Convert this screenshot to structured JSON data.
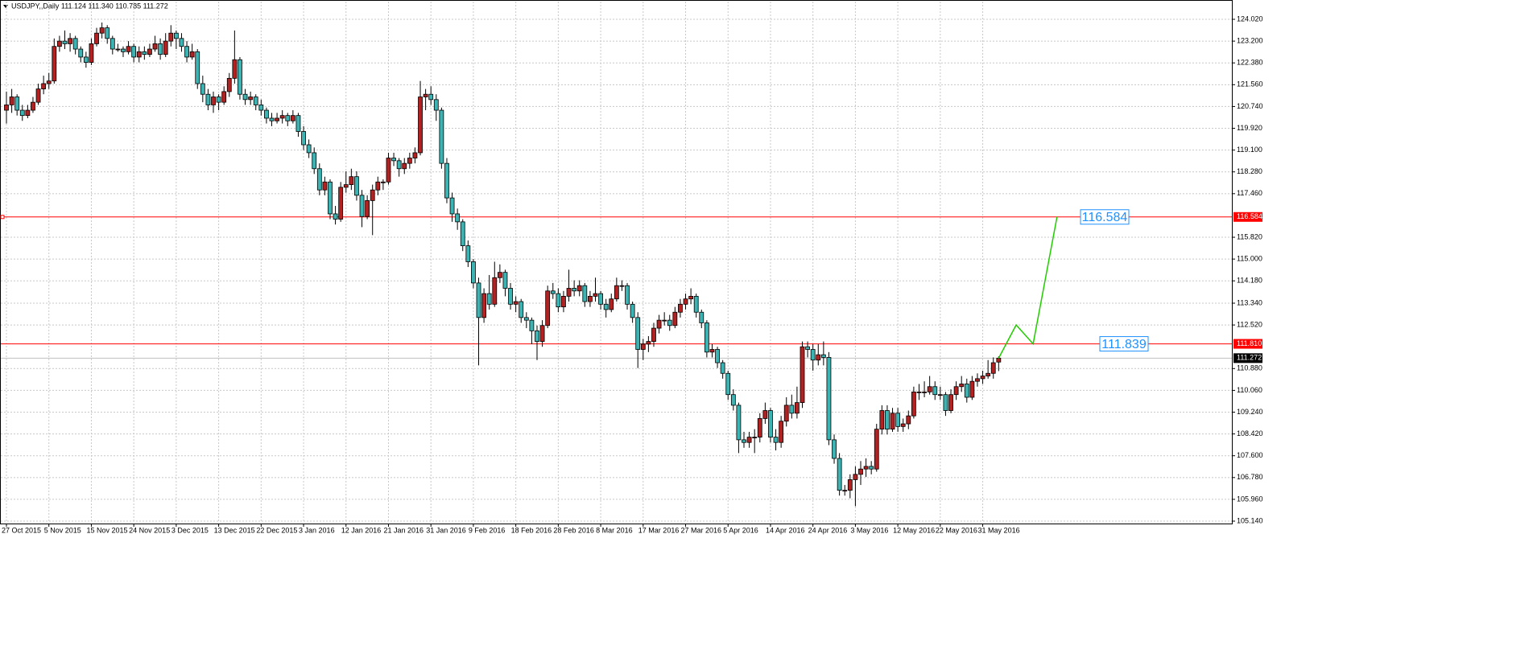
{
  "chart_data": {
    "type": "candlestick",
    "title": "USDJPY,,Daily  111.124 111.340 110.785 111.272",
    "up_color": "#b22222",
    "down_color": "#3cb4b4",
    "wick_color": "#000000",
    "grid": true,
    "ylim": [
      105.08,
      124.686
    ],
    "yticks": [
      {
        "value": 124.02,
        "label": "124.020"
      },
      {
        "value": 123.2,
        "label": "123.200"
      },
      {
        "value": 122.38,
        "label": "122.380"
      },
      {
        "value": 121.56,
        "label": "121.560"
      },
      {
        "value": 120.74,
        "label": "120.740"
      },
      {
        "value": 119.92,
        "label": "119.920"
      },
      {
        "value": 119.1,
        "label": "119.100"
      },
      {
        "value": 118.28,
        "label": "118.280"
      },
      {
        "value": 117.46,
        "label": "117.460"
      },
      {
        "value": 115.82,
        "label": "115.820"
      },
      {
        "value": 115,
        "label": "115.000"
      },
      {
        "value": 114.18,
        "label": "114.180"
      },
      {
        "value": 113.34,
        "label": "113.340"
      },
      {
        "value": 112.52,
        "label": "112.520"
      },
      {
        "value": 110.88,
        "label": "110.880"
      },
      {
        "value": 110.06,
        "label": "110.060"
      },
      {
        "value": 109.24,
        "label": "109.240"
      },
      {
        "value": 108.42,
        "label": "108.420"
      },
      {
        "value": 107.6,
        "label": "107.600"
      },
      {
        "value": 106.78,
        "label": "106.780"
      },
      {
        "value": 105.96,
        "label": "105.960"
      },
      {
        "value": 105.14,
        "label": "105.140"
      }
    ],
    "categories": [
      "27 Oct 2015",
      null,
      null,
      null,
      null,
      null,
      null,
      null,
      "5 Nov 2015",
      null,
      null,
      null,
      null,
      null,
      null,
      null,
      "15 Nov 2015",
      null,
      null,
      null,
      null,
      null,
      null,
      null,
      "24 Nov 2015",
      null,
      null,
      null,
      null,
      null,
      null,
      null,
      "3 Dec 2015",
      null,
      null,
      null,
      null,
      null,
      null,
      null,
      "13 Dec 2015",
      null,
      null,
      null,
      null,
      null,
      null,
      null,
      "22 Dec 2015",
      null,
      null,
      null,
      null,
      null,
      null,
      null,
      "3 Jan 2016",
      null,
      null,
      null,
      null,
      null,
      null,
      null,
      "12 Jan 2016",
      null,
      null,
      null,
      null,
      null,
      null,
      null,
      "21 Jan 2016",
      null,
      null,
      null,
      null,
      null,
      null,
      null,
      "31 Jan 2016",
      null,
      null,
      null,
      null,
      null,
      null,
      null,
      "9 Feb 2016",
      null,
      null,
      null,
      null,
      null,
      null,
      null,
      "18 Feb 2016",
      null,
      null,
      null,
      null,
      null,
      null,
      null,
      "28 Feb 2016",
      null,
      null,
      null,
      null,
      null,
      null,
      null,
      "8 Mar 2016",
      null,
      null,
      null,
      null,
      null,
      null,
      null,
      "17 Mar 2016",
      null,
      null,
      null,
      null,
      null,
      null,
      null,
      "27 Mar 2016",
      null,
      null,
      null,
      null,
      null,
      null,
      null,
      "5 Apr 2016",
      null,
      null,
      null,
      null,
      null,
      null,
      null,
      "14 Apr 2016",
      null,
      null,
      null,
      null,
      null,
      null,
      null,
      "24 Apr 2016",
      null,
      null,
      null,
      null,
      null,
      null,
      null,
      "3 May 2016",
      null,
      null,
      null,
      null,
      null,
      null,
      null,
      "12 May 2016",
      null,
      null,
      null,
      null,
      null,
      null,
      null,
      "22 May 2016",
      null,
      null,
      null,
      null,
      null,
      null,
      null,
      "31 May 2016",
      null,
      null,
      null
    ],
    "ohlc": [
      [
        120.6,
        121.3,
        120.1,
        120.8
      ],
      [
        120.8,
        121.4,
        120.5,
        121.1
      ],
      [
        121.1,
        121.2,
        120.4,
        120.6
      ],
      [
        120.6,
        120.8,
        120.2,
        120.4
      ],
      [
        120.4,
        120.8,
        120.3,
        120.6
      ],
      [
        120.6,
        121.1,
        120.5,
        120.9
      ],
      [
        120.9,
        121.6,
        120.8,
        121.4
      ],
      [
        121.4,
        121.9,
        121.2,
        121.6
      ],
      [
        121.6,
        122.0,
        121.4,
        121.7
      ],
      [
        121.7,
        123.3,
        121.6,
        123.0
      ],
      [
        123.0,
        123.4,
        122.8,
        123.2
      ],
      [
        123.2,
        123.6,
        122.9,
        123.1
      ],
      [
        123.1,
        123.5,
        122.8,
        123.3
      ],
      [
        123.3,
        123.4,
        122.7,
        122.9
      ],
      [
        122.9,
        123.0,
        122.4,
        122.6
      ],
      [
        122.6,
        122.8,
        122.2,
        122.4
      ],
      [
        122.4,
        123.3,
        122.3,
        123.1
      ],
      [
        123.1,
        123.7,
        123.0,
        123.5
      ],
      [
        123.5,
        123.9,
        123.3,
        123.7
      ],
      [
        123.7,
        123.8,
        123.1,
        123.3
      ],
      [
        123.3,
        123.4,
        122.7,
        122.9
      ],
      [
        122.9,
        123.1,
        122.8,
        122.9
      ],
      [
        122.9,
        123.0,
        122.6,
        122.8
      ],
      [
        122.8,
        123.2,
        122.7,
        123.0
      ],
      [
        123.0,
        123.1,
        122.4,
        122.6
      ],
      [
        122.6,
        123.0,
        122.4,
        122.8
      ],
      [
        122.8,
        123.0,
        122.5,
        122.7
      ],
      [
        122.7,
        123.1,
        122.6,
        122.9
      ],
      [
        122.9,
        123.4,
        122.8,
        123.1
      ],
      [
        123.1,
        123.3,
        122.5,
        122.7
      ],
      [
        122.7,
        123.5,
        122.6,
        123.2
      ],
      [
        123.2,
        123.8,
        123.0,
        123.5
      ],
      [
        123.5,
        123.6,
        122.9,
        123.3
      ],
      [
        123.3,
        123.5,
        122.8,
        123.0
      ],
      [
        123.0,
        123.2,
        122.4,
        122.6
      ],
      [
        122.6,
        123.1,
        122.5,
        122.8
      ],
      [
        122.8,
        122.9,
        121.4,
        121.6
      ],
      [
        121.6,
        121.9,
        120.9,
        121.2
      ],
      [
        121.2,
        121.4,
        120.6,
        120.8
      ],
      [
        120.8,
        121.3,
        120.5,
        121.1
      ],
      [
        121.1,
        121.2,
        120.6,
        120.9
      ],
      [
        120.9,
        121.5,
        120.8,
        121.3
      ],
      [
        121.3,
        122.0,
        121.1,
        121.8
      ],
      [
        121.8,
        123.6,
        121.6,
        122.5
      ],
      [
        122.5,
        122.6,
        121.0,
        121.2
      ],
      [
        121.2,
        121.4,
        120.8,
        121.0
      ],
      [
        121.0,
        121.3,
        120.8,
        121.1
      ],
      [
        121.1,
        121.2,
        120.6,
        120.8
      ],
      [
        120.8,
        121.0,
        120.4,
        120.6
      ],
      [
        120.6,
        120.7,
        120.1,
        120.3
      ],
      [
        120.3,
        120.5,
        120.0,
        120.2
      ],
      [
        120.2,
        120.5,
        120.1,
        120.3
      ],
      [
        120.3,
        120.6,
        120.1,
        120.4
      ],
      [
        120.4,
        120.5,
        120.0,
        120.2
      ],
      [
        120.2,
        120.6,
        120.1,
        120.4
      ],
      [
        120.4,
        120.5,
        119.6,
        119.8
      ],
      [
        119.8,
        120.0,
        119.1,
        119.3
      ],
      [
        119.3,
        119.5,
        118.8,
        119.0
      ],
      [
        119.0,
        119.2,
        118.2,
        118.4
      ],
      [
        118.4,
        118.6,
        117.4,
        117.6
      ],
      [
        117.6,
        118.1,
        117.4,
        117.9
      ],
      [
        117.9,
        118.0,
        116.5,
        116.7
      ],
      [
        116.7,
        117.0,
        116.3,
        116.5
      ],
      [
        116.5,
        117.9,
        116.4,
        117.7
      ],
      [
        117.7,
        118.3,
        117.5,
        117.8
      ],
      [
        117.8,
        118.4,
        117.6,
        118.1
      ],
      [
        118.1,
        118.3,
        117.2,
        117.4
      ],
      [
        117.4,
        117.6,
        116.2,
        116.6
      ],
      [
        116.6,
        117.4,
        116.5,
        117.2
      ],
      [
        117.2,
        117.8,
        115.9,
        117.6
      ],
      [
        117.6,
        118.1,
        117.4,
        117.9
      ],
      [
        117.9,
        118.0,
        117.6,
        117.9
      ],
      [
        117.9,
        119.0,
        117.8,
        118.8
      ],
      [
        118.8,
        119.0,
        118.5,
        118.7
      ],
      [
        118.7,
        118.8,
        118.1,
        118.4
      ],
      [
        118.4,
        118.8,
        118.2,
        118.6
      ],
      [
        118.6,
        119.0,
        118.4,
        118.8
      ],
      [
        118.8,
        119.2,
        118.6,
        119.0
      ],
      [
        119.0,
        121.7,
        118.9,
        121.1
      ],
      [
        121.1,
        121.4,
        120.6,
        121.2
      ],
      [
        121.2,
        121.5,
        120.8,
        121.0
      ],
      [
        121.0,
        121.2,
        120.2,
        120.6
      ],
      [
        120.6,
        120.7,
        118.4,
        118.6
      ],
      [
        118.6,
        118.8,
        117.1,
        117.3
      ],
      [
        117.3,
        117.5,
        116.4,
        116.7
      ],
      [
        116.7,
        116.9,
        116.1,
        116.4
      ],
      [
        116.4,
        116.5,
        115.3,
        115.5
      ],
      [
        115.5,
        115.7,
        114.7,
        114.9
      ],
      [
        114.9,
        115.0,
        113.9,
        114.1
      ],
      [
        114.1,
        114.3,
        111.0,
        112.8
      ],
      [
        112.8,
        113.9,
        112.6,
        113.7
      ],
      [
        113.7,
        114.4,
        113.1,
        113.3
      ],
      [
        113.3,
        114.9,
        113.2,
        114.3
      ],
      [
        114.3,
        114.8,
        114.1,
        114.5
      ],
      [
        114.5,
        114.6,
        113.6,
        113.9
      ],
      [
        113.9,
        114.1,
        113.1,
        113.3
      ],
      [
        113.3,
        113.6,
        113.0,
        113.4
      ],
      [
        113.4,
        113.5,
        112.6,
        112.8
      ],
      [
        112.8,
        113.0,
        112.4,
        112.7
      ],
      [
        112.7,
        112.8,
        111.8,
        112.3
      ],
      [
        112.3,
        112.5,
        111.2,
        111.9
      ],
      [
        111.9,
        112.7,
        111.7,
        112.5
      ],
      [
        112.5,
        114.0,
        112.4,
        113.8
      ],
      [
        113.8,
        114.1,
        113.5,
        113.7
      ],
      [
        113.7,
        113.9,
        113.0,
        113.2
      ],
      [
        113.2,
        113.8,
        113.0,
        113.6
      ],
      [
        113.6,
        114.6,
        113.4,
        113.9
      ],
      [
        113.9,
        114.2,
        113.6,
        113.8
      ],
      [
        113.8,
        114.2,
        113.6,
        114.0
      ],
      [
        114.0,
        114.1,
        113.2,
        113.4
      ],
      [
        113.4,
        113.8,
        113.2,
        113.6
      ],
      [
        113.6,
        114.3,
        113.4,
        113.7
      ],
      [
        113.7,
        113.8,
        113.1,
        113.3
      ],
      [
        113.3,
        113.5,
        112.8,
        113.1
      ],
      [
        113.1,
        113.7,
        113.0,
        113.5
      ],
      [
        113.5,
        114.3,
        113.4,
        114.0
      ],
      [
        114.0,
        114.2,
        113.8,
        114.0
      ],
      [
        114.0,
        114.1,
        113.1,
        113.3
      ],
      [
        113.3,
        113.4,
        112.6,
        112.8
      ],
      [
        112.8,
        113.0,
        110.9,
        111.6
      ],
      [
        111.6,
        112.0,
        111.2,
        111.8
      ],
      [
        111.8,
        112.1,
        111.5,
        111.9
      ],
      [
        111.9,
        112.6,
        111.7,
        112.4
      ],
      [
        112.4,
        112.9,
        112.2,
        112.7
      ],
      [
        112.7,
        113.0,
        112.5,
        112.7
      ],
      [
        112.7,
        112.9,
        112.3,
        112.5
      ],
      [
        112.5,
        113.2,
        112.4,
        113.0
      ],
      [
        113.0,
        113.5,
        112.8,
        113.3
      ],
      [
        113.3,
        113.7,
        113.1,
        113.5
      ],
      [
        113.5,
        113.9,
        113.3,
        113.6
      ],
      [
        113.6,
        113.7,
        112.8,
        113.0
      ],
      [
        113.0,
        113.1,
        112.4,
        112.6
      ],
      [
        112.6,
        112.7,
        111.3,
        111.5
      ],
      [
        111.5,
        111.8,
        111.3,
        111.6
      ],
      [
        111.6,
        111.7,
        110.9,
        111.1
      ],
      [
        111.1,
        111.2,
        110.5,
        110.7
      ],
      [
        110.7,
        110.8,
        109.7,
        109.9
      ],
      [
        109.9,
        110.1,
        109.3,
        109.5
      ],
      [
        109.5,
        109.6,
        107.7,
        108.2
      ],
      [
        108.2,
        108.5,
        107.9,
        108.1
      ],
      [
        108.1,
        108.5,
        107.9,
        108.3
      ],
      [
        108.3,
        108.6,
        107.7,
        108.3
      ],
      [
        108.3,
        109.2,
        108.1,
        109.0
      ],
      [
        109.0,
        109.6,
        108.8,
        109.3
      ],
      [
        109.3,
        109.4,
        108.1,
        108.3
      ],
      [
        108.3,
        108.6,
        107.8,
        108.1
      ],
      [
        108.1,
        109.1,
        107.9,
        108.9
      ],
      [
        108.9,
        109.8,
        108.7,
        109.5
      ],
      [
        109.5,
        109.9,
        109.0,
        109.2
      ],
      [
        109.2,
        110.2,
        109.0,
        109.6
      ],
      [
        109.6,
        111.9,
        109.4,
        111.7
      ],
      [
        111.7,
        111.9,
        111.3,
        111.6
      ],
      [
        111.6,
        111.8,
        110.8,
        111.2
      ],
      [
        111.2,
        111.8,
        111.0,
        111.4
      ],
      [
        111.4,
        111.9,
        111.0,
        111.3
      ],
      [
        111.3,
        111.5,
        108.0,
        108.2
      ],
      [
        108.2,
        108.4,
        107.3,
        107.5
      ],
      [
        107.5,
        107.7,
        106.1,
        106.3
      ],
      [
        106.3,
        106.5,
        106.1,
        106.3
      ],
      [
        106.3,
        106.9,
        106.0,
        106.7
      ],
      [
        106.7,
        107.2,
        105.7,
        106.9
      ],
      [
        106.9,
        107.4,
        106.5,
        107.1
      ],
      [
        107.1,
        107.5,
        106.8,
        107.2
      ],
      [
        107.2,
        107.4,
        106.9,
        107.1
      ],
      [
        107.1,
        108.8,
        107.0,
        108.6
      ],
      [
        108.6,
        109.5,
        108.4,
        109.3
      ],
      [
        109.3,
        109.5,
        108.4,
        108.6
      ],
      [
        108.6,
        109.4,
        108.5,
        109.2
      ],
      [
        109.2,
        109.4,
        108.5,
        108.7
      ],
      [
        108.7,
        109.0,
        108.5,
        108.8
      ],
      [
        108.8,
        109.3,
        108.6,
        109.1
      ],
      [
        109.1,
        110.2,
        109.0,
        110.0
      ],
      [
        110.0,
        110.3,
        109.7,
        110.0
      ],
      [
        110.0,
        110.4,
        109.8,
        110.0
      ],
      [
        110.0,
        110.6,
        109.9,
        110.2
      ],
      [
        110.2,
        110.4,
        109.7,
        109.9
      ],
      [
        109.9,
        110.2,
        109.7,
        109.9
      ],
      [
        109.9,
        110.0,
        109.1,
        109.3
      ],
      [
        109.3,
        110.1,
        109.2,
        109.9
      ],
      [
        109.9,
        110.4,
        109.7,
        110.2
      ],
      [
        110.2,
        110.6,
        110.0,
        110.3
      ],
      [
        110.3,
        110.5,
        109.6,
        109.8
      ],
      [
        109.8,
        110.6,
        109.7,
        110.4
      ],
      [
        110.4,
        110.7,
        110.2,
        110.5
      ],
      [
        110.5,
        110.8,
        110.3,
        110.6
      ],
      [
        110.6,
        111.2,
        110.5,
        110.7
      ],
      [
        110.7,
        111.3,
        110.5,
        111.1
      ],
      [
        111.124,
        111.34,
        110.785,
        111.272
      ]
    ],
    "lines": [
      {
        "value": 116.584,
        "label": "116.584",
        "color": "#ff0000",
        "label_color": "#ff0000"
      },
      {
        "value": 111.81,
        "label": "111.810",
        "color": "#ff0000",
        "label_color": "#ff0000"
      },
      {
        "value": 111.272,
        "label": "111.272",
        "color": "#c0c0c0",
        "label_color": "#000000"
      }
    ],
    "text_boxes": [
      {
        "text": "116.584",
        "color": "#1e90ff"
      },
      {
        "text": "111.839",
        "color": "#1e90ff"
      }
    ],
    "forecast": {
      "color": "#22cc00",
      "x": [
        187,
        190.3,
        193.5,
        198
      ],
      "values": [
        111.272,
        112.52,
        111.81,
        116.584
      ]
    }
  }
}
